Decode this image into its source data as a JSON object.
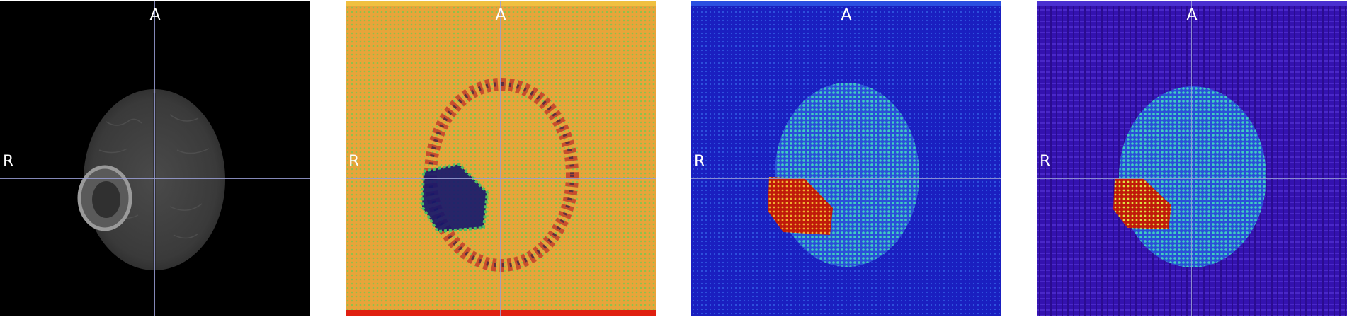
{
  "panels": [
    {
      "id": "t1ce-slice",
      "label_top": "A",
      "label_side": "R",
      "colormap": "grayscale"
    },
    {
      "id": "orange-map",
      "label_top": "A",
      "label_side": "R",
      "colormap": "orange-red"
    },
    {
      "id": "jet-map-1",
      "label_top": "A",
      "label_side": "R",
      "colormap": "jet"
    },
    {
      "id": "jet-map-2",
      "label_top": "A",
      "label_side": "R",
      "colormap": "jet-purple"
    }
  ],
  "colors": {
    "crosshair": "#9a9fd6",
    "orange_bg": "#e8a43a",
    "blue_bg": "#1a1fc0",
    "purple_bg": "#3412b0",
    "tumor_red": "#c01a0a"
  }
}
